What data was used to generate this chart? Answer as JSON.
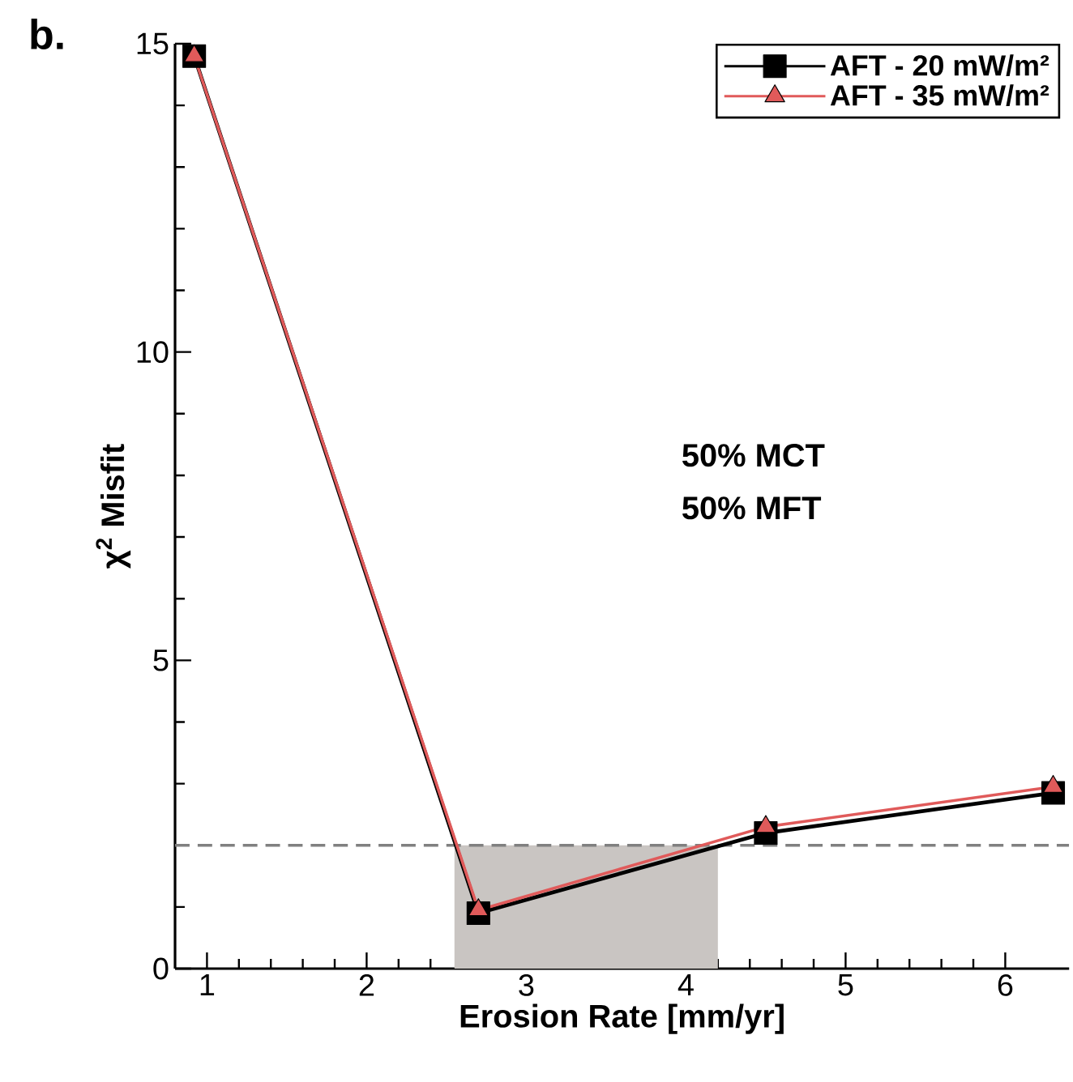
{
  "chart_data": {
    "type": "line",
    "xlabel": "Erosion Rate [mm/yr]",
    "ylabel": "χ$^{2}$ Misfit",
    "x": [
      0.92,
      2.7,
      4.5,
      6.3
    ],
    "series": [
      {
        "name": "AFT - 20 mW/m²",
        "color": "#000000",
        "marker": "square",
        "values": [
          14.8,
          0.9,
          2.2,
          2.85
        ]
      },
      {
        "name": "AFT - 35 mW/m²",
        "color": "#e05a5a",
        "marker": "triangle",
        "values": [
          14.8,
          0.95,
          2.3,
          2.95
        ]
      }
    ],
    "xlim": [
      0.8,
      6.4
    ],
    "ylim": [
      0,
      15
    ],
    "xticks": [
      1,
      2,
      3,
      4,
      5,
      6
    ],
    "yticks": [
      0,
      5,
      10,
      15
    ],
    "ref_lines": [
      {
        "axis": "y",
        "value": 2,
        "color": "#808080",
        "line_style": "dashed"
      }
    ],
    "bands": [
      {
        "axis": "x",
        "from": 2.55,
        "to": 4.2,
        "color": "#c9c5c2"
      }
    ],
    "annotations": [
      "b.",
      "50% MCT",
      "50% MFT"
    ],
    "legend": "top right",
    "grid": false,
    "line_style": "solid"
  }
}
